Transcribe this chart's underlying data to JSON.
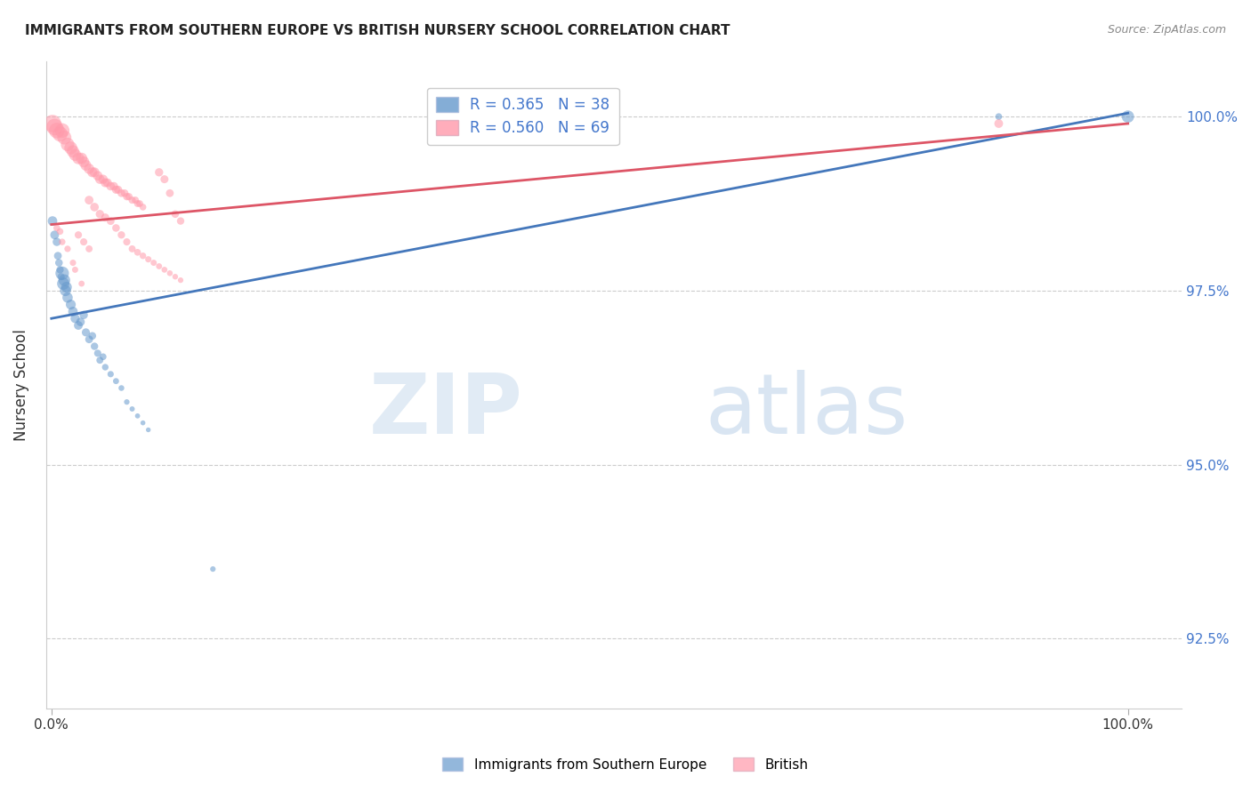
{
  "title": "IMMIGRANTS FROM SOUTHERN EUROPE VS BRITISH NURSERY SCHOOL CORRELATION CHART",
  "source": "Source: ZipAtlas.com",
  "ylabel": "Nursery School",
  "yticks": [
    92.5,
    95.0,
    97.5,
    100.0
  ],
  "ytick_labels": [
    "92.5%",
    "95.0%",
    "97.5%",
    "100.0%"
  ],
  "ymin": 91.5,
  "ymax": 100.8,
  "xmin": -0.005,
  "xmax": 1.05,
  "blue_R": 0.365,
  "blue_N": 38,
  "pink_R": 0.56,
  "pink_N": 69,
  "blue_color": "#6699cc",
  "pink_color": "#ff99aa",
  "blue_line_color": "#4477bb",
  "pink_line_color": "#dd5566",
  "legend_blue_label": "Immigrants from Southern Europe",
  "legend_pink_label": "British",
  "blue_line_x0": 0.0,
  "blue_line_y0": 97.1,
  "blue_line_x1": 1.0,
  "blue_line_y1": 100.05,
  "pink_line_x0": 0.0,
  "pink_line_y0": 98.45,
  "pink_line_x1": 1.0,
  "pink_line_y1": 99.9,
  "blue_points": [
    [
      0.001,
      98.5
    ],
    [
      0.003,
      98.3
    ],
    [
      0.005,
      98.2
    ],
    [
      0.006,
      98.0
    ],
    [
      0.007,
      97.9
    ],
    [
      0.008,
      97.8
    ],
    [
      0.009,
      97.7
    ],
    [
      0.01,
      97.75
    ],
    [
      0.011,
      97.6
    ],
    [
      0.012,
      97.65
    ],
    [
      0.013,
      97.5
    ],
    [
      0.014,
      97.55
    ],
    [
      0.015,
      97.4
    ],
    [
      0.018,
      97.3
    ],
    [
      0.02,
      97.2
    ],
    [
      0.022,
      97.1
    ],
    [
      0.025,
      97.0
    ],
    [
      0.027,
      97.05
    ],
    [
      0.03,
      97.15
    ],
    [
      0.032,
      96.9
    ],
    [
      0.035,
      96.8
    ],
    [
      0.038,
      96.85
    ],
    [
      0.04,
      96.7
    ],
    [
      0.043,
      96.6
    ],
    [
      0.045,
      96.5
    ],
    [
      0.048,
      96.55
    ],
    [
      0.05,
      96.4
    ],
    [
      0.055,
      96.3
    ],
    [
      0.06,
      96.2
    ],
    [
      0.065,
      96.1
    ],
    [
      0.07,
      95.9
    ],
    [
      0.075,
      95.8
    ],
    [
      0.08,
      95.7
    ],
    [
      0.085,
      95.6
    ],
    [
      0.09,
      95.5
    ],
    [
      0.15,
      93.5
    ],
    [
      0.88,
      100.0
    ],
    [
      1.0,
      100.0
    ]
  ],
  "pink_points": [
    [
      0.001,
      99.9
    ],
    [
      0.003,
      99.85
    ],
    [
      0.005,
      99.8
    ],
    [
      0.008,
      99.75
    ],
    [
      0.01,
      99.8
    ],
    [
      0.012,
      99.7
    ],
    [
      0.015,
      99.6
    ],
    [
      0.018,
      99.55
    ],
    [
      0.02,
      99.5
    ],
    [
      0.022,
      99.45
    ],
    [
      0.025,
      99.4
    ],
    [
      0.028,
      99.4
    ],
    [
      0.03,
      99.35
    ],
    [
      0.032,
      99.3
    ],
    [
      0.035,
      99.25
    ],
    [
      0.038,
      99.2
    ],
    [
      0.04,
      99.2
    ],
    [
      0.043,
      99.15
    ],
    [
      0.045,
      99.1
    ],
    [
      0.048,
      99.1
    ],
    [
      0.05,
      99.05
    ],
    [
      0.052,
      99.05
    ],
    [
      0.055,
      99.0
    ],
    [
      0.058,
      99.0
    ],
    [
      0.06,
      98.95
    ],
    [
      0.062,
      98.95
    ],
    [
      0.065,
      98.9
    ],
    [
      0.068,
      98.9
    ],
    [
      0.07,
      98.85
    ],
    [
      0.072,
      98.85
    ],
    [
      0.075,
      98.8
    ],
    [
      0.078,
      98.8
    ],
    [
      0.08,
      98.75
    ],
    [
      0.082,
      98.75
    ],
    [
      0.085,
      98.7
    ],
    [
      0.1,
      99.2
    ],
    [
      0.105,
      99.1
    ],
    [
      0.11,
      98.9
    ],
    [
      0.115,
      98.6
    ],
    [
      0.12,
      98.5
    ],
    [
      0.025,
      98.3
    ],
    [
      0.03,
      98.2
    ],
    [
      0.035,
      98.1
    ],
    [
      0.005,
      98.4
    ],
    [
      0.008,
      98.35
    ],
    [
      0.01,
      98.2
    ],
    [
      0.015,
      98.1
    ],
    [
      0.02,
      97.9
    ],
    [
      0.022,
      97.8
    ],
    [
      0.028,
      97.6
    ],
    [
      0.035,
      98.8
    ],
    [
      0.04,
      98.7
    ],
    [
      0.045,
      98.6
    ],
    [
      0.05,
      98.55
    ],
    [
      0.055,
      98.5
    ],
    [
      0.06,
      98.4
    ],
    [
      0.065,
      98.3
    ],
    [
      0.07,
      98.2
    ],
    [
      0.075,
      98.1
    ],
    [
      0.08,
      98.05
    ],
    [
      0.085,
      98.0
    ],
    [
      0.09,
      97.95
    ],
    [
      0.095,
      97.9
    ],
    [
      0.1,
      97.85
    ],
    [
      0.105,
      97.8
    ],
    [
      0.11,
      97.75
    ],
    [
      0.115,
      97.7
    ],
    [
      0.12,
      97.65
    ],
    [
      0.88,
      99.9
    ]
  ],
  "blue_sizes": [
    60,
    50,
    45,
    40,
    38,
    35,
    33,
    120,
    100,
    90,
    80,
    75,
    70,
    65,
    60,
    55,
    50,
    48,
    45,
    43,
    40,
    38,
    36,
    34,
    32,
    30,
    28,
    26,
    24,
    22,
    20,
    18,
    17,
    16,
    15,
    20,
    30,
    100
  ],
  "pink_sizes": [
    200,
    180,
    160,
    150,
    140,
    130,
    120,
    110,
    100,
    95,
    90,
    85,
    80,
    75,
    70,
    65,
    63,
    60,
    58,
    55,
    53,
    50,
    48,
    46,
    44,
    42,
    40,
    38,
    36,
    35,
    34,
    33,
    32,
    31,
    30,
    45,
    42,
    40,
    38,
    36,
    35,
    34,
    32,
    30,
    29,
    28,
    27,
    26,
    25,
    24,
    50,
    48,
    45,
    43,
    40,
    38,
    36,
    34,
    32,
    30,
    28,
    26,
    25,
    24,
    23,
    22,
    21,
    20,
    50
  ]
}
